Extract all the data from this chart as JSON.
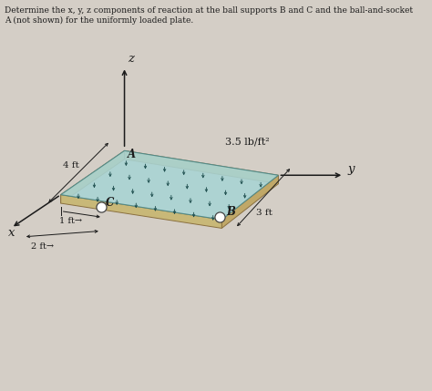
{
  "title_text": "Determine the x, y, z components of reaction at the ball supports B and C and the ball-and-socket\nA (not shown) for the uniformly loaded plate.",
  "bg_color": "#d4cec6",
  "plate_color_top": "#a8d4d4",
  "plate_edge_tan": "#c8b080",
  "plate_edge_dark": "#a08840",
  "label_A": "A",
  "label_B": "B",
  "label_C": "C",
  "label_x": "x",
  "label_y": "y",
  "label_z": "z",
  "label_load": "3.5 lb/ft²",
  "label_4ft": "4 ft",
  "label_3ft": "3 ft",
  "label_1ft": "1 ft→",
  "label_2ft": "2 ft→",
  "arrow_color": "#1a1a1a",
  "text_color": "#1a1a1a",
  "load_arrow_color": "#1a4a4a"
}
